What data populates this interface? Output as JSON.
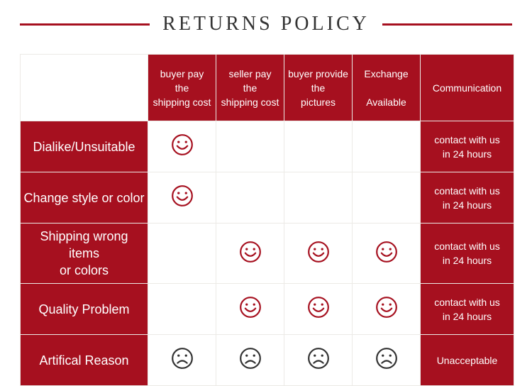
{
  "colors": {
    "brand": "#a6101f",
    "frown": "#333333",
    "cell_border": "#eceae6",
    "title_line": "#a6101f",
    "bg": "#ffffff",
    "title_text": "#333333"
  },
  "title": "RETURNS POLICY",
  "headers": {
    "c1": "buyer pay\nthe\nshipping cost",
    "c2": "seller pay\nthe\nshipping cost",
    "c3": "buyer provide\nthe\npictures",
    "c4": "Exchange\n\nAvailable",
    "c5": "Communication"
  },
  "rows": [
    {
      "label": "Dialike/Unsuitable",
      "cells": [
        "smile",
        "",
        "",
        "",
        ""
      ],
      "comm": "contact with us\nin 24 hours"
    },
    {
      "label": "Change style or color",
      "cells": [
        "smile",
        "",
        "",
        "",
        ""
      ],
      "comm": "contact with us\nin 24 hours"
    },
    {
      "label": "Shipping wrong items\nor colors",
      "cells": [
        "",
        "smile",
        "smile",
        "smile",
        ""
      ],
      "comm": "contact with us\nin 24 hours"
    },
    {
      "label": "Quality Problem",
      "cells": [
        "",
        "smile",
        "smile",
        "smile",
        ""
      ],
      "comm": "contact with us\nin 24 hours"
    },
    {
      "label": "Artifical Reason",
      "cells": [
        "frown",
        "frown",
        "frown",
        "frown",
        ""
      ],
      "comm": "Unacceptable"
    }
  ],
  "icon_size": 32,
  "face_stroke_width": 2.2
}
